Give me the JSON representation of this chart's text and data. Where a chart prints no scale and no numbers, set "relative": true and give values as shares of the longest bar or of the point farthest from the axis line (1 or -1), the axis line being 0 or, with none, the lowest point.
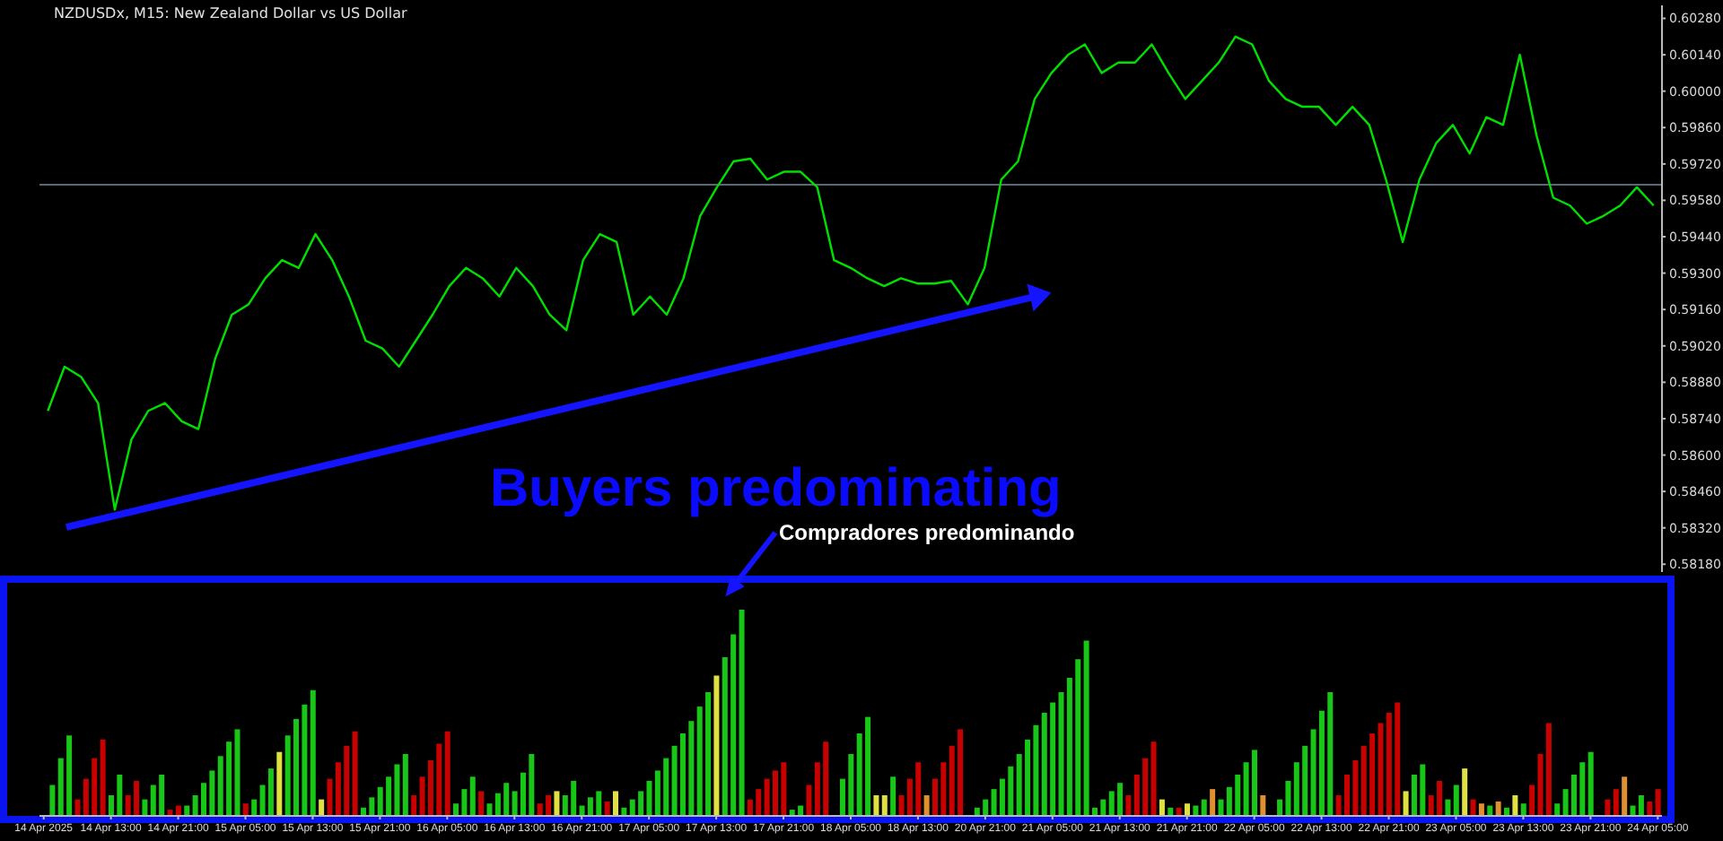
{
  "chart_data": [
    {
      "type": "line",
      "title": "NZDUSDx, M15: New Zealand Dollar vs US Dollar",
      "tick_labels": "y",
      "ylim": [
        0.5815,
        0.6033
      ],
      "yticks": [
        {
          "value": 0.6028,
          "label": "0.60280"
        },
        {
          "value": 0.6014,
          "label": "0.60140"
        },
        {
          "value": 0.6,
          "label": "0.60000"
        },
        {
          "value": 0.5986,
          "label": "0.59860"
        },
        {
          "value": 0.5972,
          "label": "0.59720"
        },
        {
          "value": 0.5958,
          "label": "0.59580"
        },
        {
          "value": 0.5944,
          "label": "0.59440"
        },
        {
          "value": 0.593,
          "label": "0.59300"
        },
        {
          "value": 0.5916,
          "label": "0.59160"
        },
        {
          "value": 0.5902,
          "label": "0.59020"
        },
        {
          "value": 0.5888,
          "label": "0.58880"
        },
        {
          "value": 0.5874,
          "label": "0.58740"
        },
        {
          "value": 0.586,
          "label": "0.58600"
        },
        {
          "value": 0.5846,
          "label": "0.58460"
        },
        {
          "value": 0.5832,
          "label": "0.58320"
        },
        {
          "value": 0.5818,
          "label": "0.58180"
        }
      ],
      "ref_lines": [
        {
          "axis": "y",
          "value": 0.5964,
          "label": null,
          "color": "#5a6878"
        }
      ],
      "annotations": [
        "Buyers predominating",
        "Compradores predominando"
      ],
      "series": [
        {
          "color": "#00e000",
          "values": [
            0.5877,
            0.5894,
            0.589,
            0.588,
            0.5839,
            0.5866,
            0.5877,
            0.588,
            0.5873,
            0.587,
            0.5897,
            0.5914,
            0.5918,
            0.5928,
            0.5935,
            0.5932,
            0.5945,
            0.5935,
            0.5921,
            0.5904,
            0.5901,
            0.5894,
            0.5904,
            0.5914,
            0.5925,
            0.5932,
            0.5928,
            0.5921,
            0.5932,
            0.5925,
            0.5914,
            0.5908,
            0.5935,
            0.5945,
            0.5942,
            0.5914,
            0.5921,
            0.5914,
            0.5928,
            0.5952,
            0.5963,
            0.5973,
            0.5974,
            0.5966,
            0.5969,
            0.5969,
            0.5963,
            0.5935,
            0.5932,
            0.5928,
            0.5925,
            0.5928,
            0.5926,
            0.5926,
            0.5927,
            0.5918,
            0.5932,
            0.5966,
            0.5973,
            0.5997,
            0.6007,
            0.6014,
            0.6018,
            0.6007,
            0.6011,
            0.6011,
            0.6018,
            0.6007,
            0.5997,
            0.6004,
            0.6011,
            0.6021,
            0.6018,
            0.6004,
            0.5997,
            0.5994,
            0.5994,
            0.5987,
            0.5994,
            0.5987,
            0.5966,
            0.5942,
            0.5966,
            0.598,
            0.5987,
            0.5976,
            0.599,
            0.5987,
            0.6014,
            0.5983,
            0.5959,
            0.5956,
            0.5949,
            0.5952,
            0.5956,
            0.5963,
            0.5956
          ]
        }
      ]
    },
    {
      "type": "bar",
      "relative": true,
      "tick_labels": "x",
      "categories": [
        "14 Apr 2025",
        null,
        null,
        null,
        null,
        null,
        null,
        null,
        "14 Apr 13:00",
        null,
        null,
        null,
        null,
        null,
        null,
        null,
        "14 Apr 21:00",
        null,
        null,
        null,
        null,
        null,
        null,
        null,
        "15 Apr 05:00",
        null,
        null,
        null,
        null,
        null,
        null,
        null,
        "15 Apr 13:00",
        null,
        null,
        null,
        null,
        null,
        null,
        null,
        "15 Apr 21:00",
        null,
        null,
        null,
        null,
        null,
        null,
        null,
        "16 Apr 05:00",
        null,
        null,
        null,
        null,
        null,
        null,
        null,
        "16 Apr 13:00",
        null,
        null,
        null,
        null,
        null,
        null,
        null,
        "16 Apr 21:00",
        null,
        null,
        null,
        null,
        null,
        null,
        null,
        "17 Apr 05:00",
        null,
        null,
        null,
        null,
        null,
        null,
        null,
        "17 Apr 13:00",
        null,
        null,
        null,
        null,
        null,
        null,
        null,
        "17 Apr 21:00",
        null,
        null,
        null,
        null,
        null,
        null,
        null,
        "18 Apr 05:00",
        null,
        null,
        null,
        null,
        null,
        null,
        null,
        "18 Apr 13:00",
        null,
        null,
        null,
        null,
        null,
        null,
        null,
        "20 Apr 21:00",
        null,
        null,
        null,
        null,
        null,
        null,
        null,
        "21 Apr 05:00",
        null,
        null,
        null,
        null,
        null,
        null,
        null,
        "21 Apr 13:00",
        null,
        null,
        null,
        null,
        null,
        null,
        null,
        "21 Apr 21:00",
        null,
        null,
        null,
        null,
        null,
        null,
        null,
        "22 Apr 05:00",
        null,
        null,
        null,
        null,
        null,
        null,
        null,
        "22 Apr 13:00",
        null,
        null,
        null,
        null,
        null,
        null,
        null,
        "22 Apr 21:00",
        null,
        null,
        null,
        null,
        null,
        null,
        null,
        "23 Apr 05:00",
        null,
        null,
        null,
        null,
        null,
        null,
        null,
        "23 Apr 13:00",
        null,
        null,
        null,
        null,
        null,
        null,
        null,
        "23 Apr 21:00",
        null,
        null,
        null,
        null,
        null,
        null,
        null,
        "24 Apr 05:00"
      ],
      "values": [
        null,
        0.15,
        0.28,
        0.39,
        0.08,
        0.18,
        0.28,
        0.37,
        0.1,
        0.2,
        0.1,
        0.17,
        0.08,
        0.15,
        0.2,
        0.03,
        0.05,
        0.05,
        0.1,
        0.16,
        0.22,
        0.29,
        0.36,
        0.42,
        0.06,
        0.08,
        0.15,
        0.23,
        0.31,
        0.39,
        0.47,
        0.54,
        0.61,
        0.08,
        0.18,
        0.26,
        0.34,
        0.41,
        0.04,
        0.09,
        0.14,
        0.19,
        0.25,
        0.3,
        0.1,
        0.19,
        0.27,
        0.35,
        0.41,
        0.06,
        0.13,
        0.19,
        0.12,
        0.06,
        0.11,
        0.16,
        0.12,
        0.21,
        0.3,
        0.06,
        0.1,
        0.12,
        0.1,
        0.17,
        0.05,
        0.09,
        0.12,
        0.07,
        0.12,
        0.04,
        0.08,
        0.12,
        0.17,
        0.22,
        0.28,
        0.34,
        0.4,
        0.46,
        0.53,
        0.6,
        0.68,
        0.77,
        0.88,
        1.0,
        0.08,
        0.13,
        0.18,
        0.22,
        0.26,
        0.03,
        0.05,
        0.15,
        0.26,
        0.36,
        null,
        0.18,
        0.3,
        0.4,
        0.48,
        0.1,
        0.1,
        0.19,
        0.1,
        0.18,
        0.26,
        0.1,
        0.18,
        0.26,
        0.34,
        0.42,
        null,
        0.04,
        0.08,
        0.13,
        0.18,
        0.24,
        0.3,
        0.37,
        0.44,
        0.5,
        0.55,
        0.6,
        0.67,
        0.76,
        0.85,
        0.04,
        0.08,
        0.12,
        0.16,
        0.1,
        0.2,
        0.28,
        0.36,
        0.08,
        0.04,
        0.04,
        0.06,
        0.05,
        0.08,
        0.13,
        0.08,
        0.14,
        0.2,
        0.26,
        0.32,
        0.1,
        null,
        0.08,
        0.17,
        0.26,
        0.34,
        0.42,
        0.51,
        0.6,
        0.1,
        0.2,
        0.27,
        0.34,
        0.4,
        0.45,
        0.5,
        0.55,
        0.12,
        0.2,
        0.25,
        0.1,
        0.17,
        0.08,
        0.15,
        0.23,
        0.08,
        0.06,
        0.05,
        0.07,
        0.04,
        0.1,
        0.06,
        0.15,
        0.3,
        0.45,
        0.06,
        0.13,
        0.2,
        0.26,
        0.31,
        null,
        0.08,
        0.13,
        0.19,
        0.05,
        0.1,
        0.07,
        0.13
      ],
      "colors": [
        null,
        "#17c617",
        "#17c617",
        "#17c617",
        "#c80000",
        "#c80000",
        "#c80000",
        "#c80000",
        "#17c617",
        "#17c617",
        "#c80000",
        "#c80000",
        "#17c617",
        "#17c617",
        "#17c617",
        "#c80000",
        "#c80000",
        "#17c617",
        "#17c617",
        "#17c617",
        "#17c617",
        "#17c617",
        "#17c617",
        "#17c617",
        "#c80000",
        "#17c617",
        "#17c617",
        "#17c617",
        "#e0e040",
        "#17c617",
        "#17c617",
        "#17c617",
        "#17c617",
        "#e0e040",
        "#c80000",
        "#c80000",
        "#c80000",
        "#c80000",
        "#17c617",
        "#17c617",
        "#17c617",
        "#17c617",
        "#17c617",
        "#17c617",
        "#c80000",
        "#c80000",
        "#c80000",
        "#c80000",
        "#c80000",
        "#17c617",
        "#17c617",
        "#17c617",
        "#c80000",
        "#17c617",
        "#17c617",
        "#17c617",
        "#17c617",
        "#17c617",
        "#17c617",
        "#c80000",
        "#c80000",
        "#e0e040",
        "#17c617",
        "#17c617",
        "#17c617",
        "#17c617",
        "#17c617",
        "#c80000",
        "#e0e040",
        "#17c617",
        "#17c617",
        "#17c617",
        "#17c617",
        "#17c617",
        "#17c617",
        "#17c617",
        "#17c617",
        "#17c617",
        "#17c617",
        "#17c617",
        "#e0e040",
        "#17c617",
        "#17c617",
        "#17c617",
        "#c80000",
        "#c80000",
        "#c80000",
        "#c80000",
        "#c80000",
        "#17c617",
        "#17c617",
        "#c80000",
        "#c80000",
        "#c80000",
        null,
        "#17c617",
        "#17c617",
        "#17c617",
        "#17c617",
        "#e0e040",
        "#e0e040",
        "#17c617",
        "#c80000",
        "#c80000",
        "#c80000",
        "#e09030",
        "#c80000",
        "#c80000",
        "#c80000",
        "#c80000",
        null,
        "#17c617",
        "#17c617",
        "#17c617",
        "#17c617",
        "#17c617",
        "#17c617",
        "#17c617",
        "#17c617",
        "#17c617",
        "#17c617",
        "#17c617",
        "#17c617",
        "#17c617",
        "#17c617",
        "#17c617",
        "#17c617",
        "#17c617",
        "#17c617",
        "#c80000",
        "#c80000",
        "#c80000",
        "#c80000",
        "#e0e040",
        "#17c617",
        "#c80000",
        "#e0e040",
        "#17c617",
        "#17c617",
        "#e09030",
        "#17c617",
        "#17c617",
        "#17c617",
        "#17c617",
        "#17c617",
        "#e09030",
        null,
        "#17c617",
        "#17c617",
        "#17c617",
        "#17c617",
        "#17c617",
        "#17c617",
        "#17c617",
        "#c80000",
        "#c80000",
        "#c80000",
        "#c80000",
        "#c80000",
        "#c80000",
        "#c80000",
        "#c80000",
        "#e0e040",
        "#17c617",
        "#17c617",
        "#c80000",
        "#c80000",
        "#17c617",
        "#17c617",
        "#e0e040",
        "#c80000",
        "#e09030",
        "#17c617",
        "#e09030",
        "#17c617",
        "#e0e040",
        "#17c617",
        "#c80000",
        "#c80000",
        "#c80000",
        "#17c617",
        "#17c617",
        "#17c617",
        "#17c617",
        "#17c617",
        null,
        "#c80000",
        "#c80000",
        "#e09030",
        "#17c617",
        "#17c617",
        "#c80000",
        "#c80000"
      ]
    }
  ]
}
